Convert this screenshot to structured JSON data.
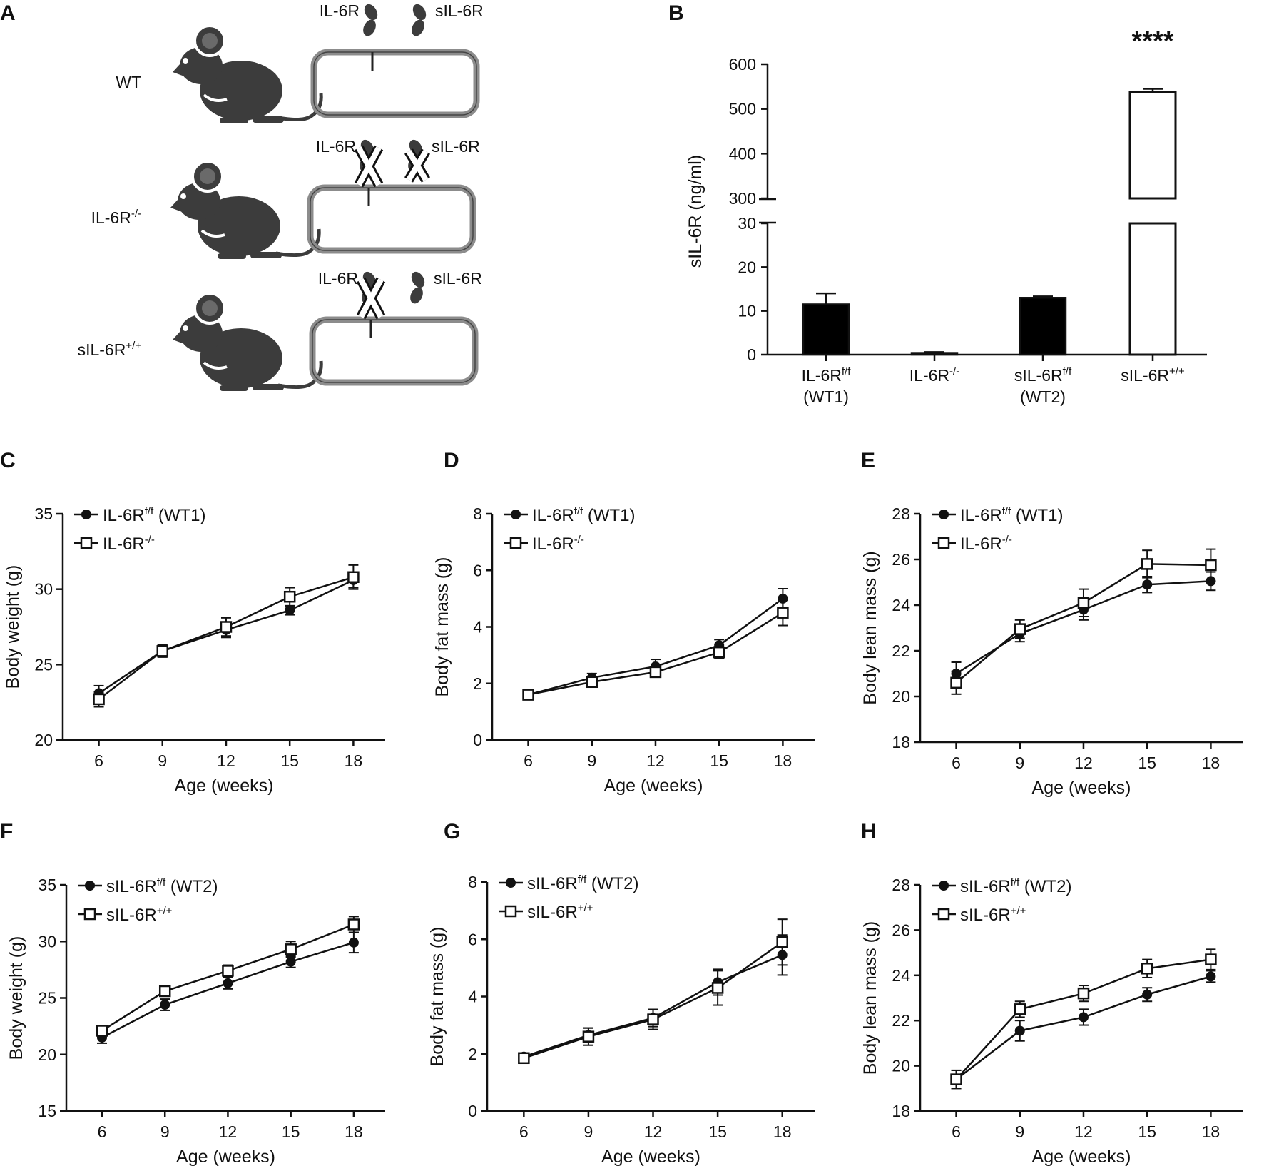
{
  "panels": {
    "A": {
      "label": "A",
      "rows": [
        {
          "name": "WT",
          "genotype": "WT",
          "sup": "",
          "membrane_label": "IL-6R",
          "soluble_label": "sIL-6R",
          "membrane_crossed": false,
          "soluble_crossed": false
        },
        {
          "name": "IL-6R-/-",
          "genotype": "IL-6R",
          "sup": "-/-",
          "membrane_label": "IL-6R",
          "soluble_label": "sIL-6R",
          "membrane_crossed": true,
          "soluble_crossed": true
        },
        {
          "name": "sIL-6R+/+",
          "genotype": "sIL-6R",
          "sup": "+/+",
          "membrane_label": "IL-6R",
          "soluble_label": "sIL-6R",
          "membrane_crossed": true,
          "soluble_crossed": false
        }
      ]
    }
  },
  "chart_data": [
    {
      "panel": "B",
      "type": "bar",
      "ylabel": "sIL-6R (ng/ml)",
      "broken_axis": true,
      "lower_range": [
        0,
        30
      ],
      "upper_range": [
        300,
        600
      ],
      "lower_ticks": [
        "0",
        "10",
        "20",
        "30"
      ],
      "upper_ticks": [
        "300",
        "400",
        "500",
        "600"
      ],
      "categories": [
        {
          "name": "IL-6Rf/f (WT1)",
          "line1": "IL-6R",
          "sup": "f/f",
          "line2": "(WT1)",
          "value": 11.5,
          "error": 2.5,
          "fill": "#000000"
        },
        {
          "name": "IL-6R-/-",
          "line1": "IL-6R",
          "sup": "-/-",
          "line2": "",
          "value": 0.4,
          "error": 0.2,
          "fill": "#000000"
        },
        {
          "name": "sIL-6Rf/f (WT2)",
          "line1": "sIL-6R",
          "sup": "f/f",
          "line2": "(WT2)",
          "value": 13,
          "error": 0.3,
          "fill": "#000000"
        },
        {
          "name": "sIL-6R+/+",
          "line1": "sIL-6R",
          "sup": "+/+",
          "line2": "",
          "value": 537,
          "error": 8,
          "fill": "#ffffff"
        }
      ],
      "annotation": "****"
    },
    {
      "panel": "C",
      "type": "line",
      "ylabel": "Body weight (g)",
      "xlabel": "Age (weeks)",
      "x": [
        6,
        9,
        12,
        15,
        18
      ],
      "ylim": [
        20,
        35
      ],
      "yticks": [
        20,
        25,
        30,
        35
      ],
      "series": [
        {
          "name": "IL-6Rf/f (WT1)",
          "base": "IL-6R",
          "sup": "f/f",
          "suffix": " (WT1)",
          "marker": "filled-circle",
          "values": [
            23.1,
            25.9,
            27.3,
            28.6,
            30.6
          ],
          "errors": [
            0.5,
            0.4,
            0.5,
            0.3,
            0.5
          ]
        },
        {
          "name": "IL-6R-/-",
          "base": "IL-6R",
          "sup": "-/-",
          "suffix": "",
          "marker": "open-square",
          "values": [
            22.7,
            25.9,
            27.5,
            29.5,
            30.8
          ],
          "errors": [
            0.5,
            0.4,
            0.6,
            0.6,
            0.8
          ]
        }
      ]
    },
    {
      "panel": "D",
      "type": "line",
      "ylabel": "Body fat mass (g)",
      "xlabel": "Age (weeks)",
      "x": [
        6,
        9,
        12,
        15,
        18
      ],
      "ylim": [
        0,
        8
      ],
      "yticks": [
        0,
        2,
        4,
        6,
        8
      ],
      "series": [
        {
          "name": "IL-6Rf/f (WT1)",
          "base": "IL-6R",
          "sup": "f/f",
          "suffix": " (WT1)",
          "marker": "filled-circle",
          "values": [
            1.6,
            2.2,
            2.6,
            3.35,
            5.0
          ],
          "errors": [
            0.1,
            0.15,
            0.25,
            0.2,
            0.35
          ]
        },
        {
          "name": "IL-6R-/-",
          "base": "IL-6R",
          "sup": "-/-",
          "suffix": "",
          "marker": "open-square",
          "values": [
            1.6,
            2.05,
            2.4,
            3.1,
            4.5
          ],
          "errors": [
            0.1,
            0.1,
            0.15,
            0.2,
            0.45
          ]
        }
      ]
    },
    {
      "panel": "E",
      "type": "line",
      "ylabel": "Body lean mass (g)",
      "xlabel": "Age (weeks)",
      "x": [
        6,
        9,
        12,
        15,
        18
      ],
      "ylim": [
        18,
        28
      ],
      "yticks": [
        18,
        20,
        22,
        24,
        26,
        28
      ],
      "series": [
        {
          "name": "IL-6Rf/f (WT1)",
          "base": "IL-6R",
          "sup": "f/f",
          "suffix": " (WT1)",
          "marker": "filled-circle",
          "values": [
            21.0,
            22.75,
            23.8,
            24.9,
            25.05
          ],
          "errors": [
            0.5,
            0.35,
            0.45,
            0.35,
            0.4
          ]
        },
        {
          "name": "IL-6R-/-",
          "base": "IL-6R",
          "sup": "-/-",
          "suffix": "",
          "marker": "open-square",
          "values": [
            20.6,
            22.95,
            24.1,
            25.8,
            25.75
          ],
          "errors": [
            0.5,
            0.4,
            0.6,
            0.6,
            0.7
          ]
        }
      ]
    },
    {
      "panel": "F",
      "type": "line",
      "ylabel": "Body weight (g)",
      "xlabel": "Age (weeks)",
      "x": [
        6,
        9,
        12,
        15,
        18
      ],
      "ylim": [
        15,
        35
      ],
      "yticks": [
        15,
        20,
        25,
        30,
        35
      ],
      "series": [
        {
          "name": "sIL-6Rf/f (WT2)",
          "base": "sIL-6R",
          "sup": "f/f",
          "suffix": " (WT2)",
          "marker": "filled-circle",
          "values": [
            21.5,
            24.4,
            26.3,
            28.2,
            29.9
          ],
          "errors": [
            0.5,
            0.5,
            0.5,
            0.5,
            0.9
          ]
        },
        {
          "name": "sIL-6R+/+",
          "base": "sIL-6R",
          "sup": "+/+",
          "suffix": "",
          "marker": "open-square",
          "values": [
            22.1,
            25.6,
            27.4,
            29.3,
            31.5
          ],
          "errors": [
            0.3,
            0.3,
            0.5,
            0.7,
            0.7
          ]
        }
      ]
    },
    {
      "panel": "G",
      "type": "line",
      "ylabel": "Body fat mass (g)",
      "xlabel": "Age (weeks)",
      "x": [
        6,
        9,
        12,
        15,
        18
      ],
      "ylim": [
        0,
        8
      ],
      "yticks": [
        0,
        2,
        4,
        6,
        8
      ],
      "series": [
        {
          "name": "sIL-6Rf/f (WT2)",
          "base": "sIL-6R",
          "sup": "f/f",
          "suffix": " (WT2)",
          "marker": "filled-circle",
          "values": [
            1.9,
            2.65,
            3.25,
            4.5,
            5.45
          ],
          "errors": [
            0.1,
            0.25,
            0.3,
            0.45,
            0.7
          ]
        },
        {
          "name": "sIL-6R+/+",
          "base": "sIL-6R",
          "sup": "+/+",
          "suffix": "",
          "marker": "open-square",
          "values": [
            1.85,
            2.6,
            3.2,
            4.3,
            5.9
          ],
          "errors": [
            0.1,
            0.3,
            0.35,
            0.6,
            0.8
          ]
        }
      ]
    },
    {
      "panel": "H",
      "type": "line",
      "ylabel": "Body lean mass (g)",
      "xlabel": "Age (weeks)",
      "x": [
        6,
        9,
        12,
        15,
        18
      ],
      "ylim": [
        18,
        28
      ],
      "yticks": [
        18,
        20,
        22,
        24,
        26,
        28
      ],
      "series": [
        {
          "name": "sIL-6Rf/f (WT2)",
          "base": "sIL-6R",
          "sup": "f/f",
          "suffix": " (WT2)",
          "marker": "filled-circle",
          "values": [
            19.4,
            21.55,
            22.15,
            23.15,
            23.95
          ],
          "errors": [
            0.4,
            0.45,
            0.35,
            0.3,
            0.25
          ]
        },
        {
          "name": "sIL-6R+/+",
          "base": "sIL-6R",
          "sup": "+/+",
          "suffix": "",
          "marker": "open-square",
          "values": [
            19.4,
            22.5,
            23.2,
            24.3,
            24.7
          ],
          "errors": [
            0.4,
            0.35,
            0.35,
            0.4,
            0.45
          ]
        }
      ]
    }
  ]
}
